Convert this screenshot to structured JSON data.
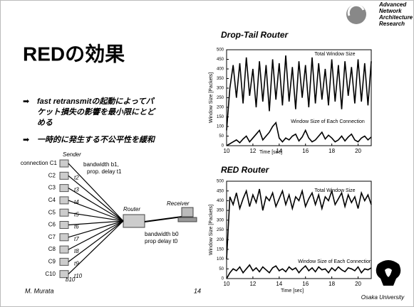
{
  "slide": {
    "logo": [
      "Advanced",
      "Network",
      "Architecture",
      "Research"
    ],
    "title": "REDの効果",
    "bullets": [
      [
        "fast retransmitの起動によってパ",
        "ケット損失の影響を最小限にとど",
        "める"
      ],
      [
        "一時的に発生する不公平性を緩和"
      ]
    ],
    "footer": {
      "author": "M. Murata",
      "page": "14",
      "affiliation": "Osaka University"
    }
  },
  "diagram": {
    "sender": "Sender",
    "connections": [
      "connection C1",
      "C2",
      "C3",
      "C4",
      "C5",
      "C6",
      "C7",
      "C8",
      "C9",
      "C10"
    ],
    "link1": [
      "bandwidth b1,",
      "prop. delay t1"
    ],
    "delays": [
      "t2",
      "t3",
      "t4",
      "t5",
      "t6",
      "t7",
      "t8",
      "t9",
      "t10"
    ],
    "last_bandwidth": "b10",
    "router": "Router",
    "receiver": "Receiver",
    "link0": [
      "bandwidth b0",
      "prop delay t0"
    ]
  },
  "chart_data": [
    {
      "type": "line",
      "title": "Drop-Tail Router",
      "x_label": "Time [sec]",
      "y_label": "Window Size [Packets]",
      "x": [
        10,
        10.25,
        10.5,
        10.75,
        11,
        11.25,
        11.5,
        11.75,
        12,
        12.25,
        12.5,
        12.75,
        13,
        13.25,
        13.5,
        13.75,
        14,
        14.25,
        14.5,
        14.75,
        15,
        15.25,
        15.5,
        15.75,
        16,
        16.25,
        16.5,
        16.75,
        17,
        17.25,
        17.5,
        17.75,
        18,
        18.25,
        18.5,
        18.75,
        19,
        19.25,
        19.5,
        19.75,
        20,
        20.25,
        20.5,
        20.75,
        21
      ],
      "series": [
        {
          "name": "Total Window Size",
          "color": "#000000",
          "values": [
            80,
            300,
            420,
            250,
            430,
            220,
            460,
            260,
            400,
            200,
            440,
            230,
            420,
            180,
            450,
            240,
            430,
            210,
            470,
            230,
            410,
            190,
            440,
            250,
            420,
            200,
            460,
            220,
            430,
            240,
            400,
            210,
            450,
            230,
            420,
            190,
            440,
            260,
            410,
            220,
            450,
            230,
            430,
            210,
            440
          ]
        },
        {
          "name": "Window Size of Each Connection",
          "color": "#000000",
          "values": [
            0,
            10,
            20,
            30,
            15,
            35,
            50,
            20,
            40,
            60,
            80,
            30,
            50,
            70,
            100,
            120,
            40,
            20,
            40,
            30,
            50,
            60,
            25,
            45,
            80,
            40,
            20,
            30,
            50,
            70,
            35,
            55,
            40,
            20,
            30,
            50,
            25,
            45,
            60,
            30,
            20,
            40,
            50,
            30,
            45
          ]
        }
      ],
      "xlim": [
        10,
        21
      ],
      "xticks": [
        10,
        12,
        14,
        16,
        18,
        20
      ],
      "ylim": [
        0,
        500
      ],
      "yticks": [
        0,
        50,
        100,
        150,
        200,
        250,
        300,
        350,
        400,
        450,
        500
      ]
    },
    {
      "type": "line",
      "title": "RED Router",
      "x_label": "Time [sec]",
      "y_label": "Window Size [Packets]",
      "x": [
        10,
        10.25,
        10.5,
        10.75,
        11,
        11.25,
        11.5,
        11.75,
        12,
        12.25,
        12.5,
        12.75,
        13,
        13.25,
        13.5,
        13.75,
        14,
        14.25,
        14.5,
        14.75,
        15,
        15.25,
        15.5,
        15.75,
        16,
        16.25,
        16.5,
        16.75,
        17,
        17.25,
        17.5,
        17.75,
        18,
        18.25,
        18.5,
        18.75,
        19,
        19.25,
        19.5,
        19.75,
        20,
        20.25,
        20.5,
        20.75,
        21
      ],
      "series": [
        {
          "name": "Total Window Size",
          "color": "#000000",
          "values": [
            100,
            420,
            380,
            440,
            360,
            410,
            450,
            370,
            430,
            390,
            460,
            350,
            420,
            400,
            440,
            370,
            410,
            450,
            380,
            430,
            360,
            420,
            400,
            450,
            370,
            410,
            440,
            380,
            430,
            360,
            420,
            400,
            450,
            380,
            410,
            440,
            370,
            430,
            390,
            420,
            360,
            440,
            400,
            430,
            380
          ]
        },
        {
          "name": "Window Size of Each Connection",
          "color": "#000000",
          "values": [
            0,
            30,
            50,
            40,
            60,
            30,
            50,
            70,
            40,
            55,
            35,
            60,
            45,
            30,
            55,
            65,
            40,
            50,
            35,
            60,
            45,
            55,
            30,
            50,
            65,
            40,
            55,
            35,
            60,
            45,
            50,
            30,
            55,
            40,
            60,
            45,
            35,
            55,
            50,
            40,
            60,
            30,
            50,
            45,
            55
          ]
        }
      ],
      "xlim": [
        10,
        21
      ],
      "xticks": [
        10,
        12,
        14,
        16,
        18,
        20
      ],
      "ylim": [
        0,
        500
      ],
      "yticks": [
        0,
        50,
        100,
        150,
        200,
        250,
        300,
        350,
        400,
        450,
        500
      ]
    }
  ]
}
